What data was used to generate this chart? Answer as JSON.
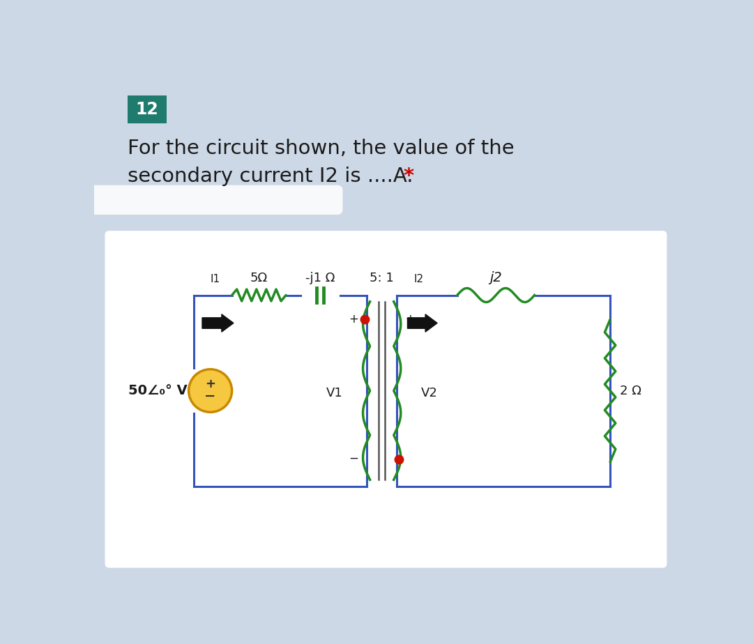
{
  "bg_color": "#cdd8e6",
  "white_box_color": "#ffffff",
  "question_number": "12",
  "question_number_bg": "#1e7b6e",
  "question_number_color": "#ffffff",
  "question_text_line1": "For the circuit shown, the value of the",
  "question_text_line2": "secondary current I2 is ....A.",
  "asterisk": "*",
  "asterisk_color": "#cc0000",
  "text_color": "#1a1a1a",
  "circuit_wire_color": "#3355bb",
  "circuit_wire_lw": 2.2,
  "component_color": "#228B22",
  "source_circle_color": "#f5c840",
  "source_border_color": "#c88800",
  "arrow_color": "#111111",
  "dot_color": "#cc1100",
  "label_5ohm": "5Ω",
  "label_j1ohm": "-j1 Ω",
  "label_j2": "j2",
  "label_2ohm": "2 Ω",
  "label_ratio": "5: 1",
  "label_I1": "I1",
  "label_I2": "I2",
  "label_V1": "V1",
  "label_V2": "V2",
  "source_text": "50∠₀° V"
}
